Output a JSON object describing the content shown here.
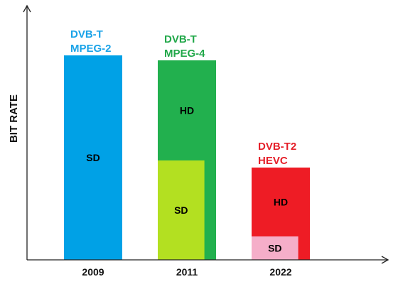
{
  "chart_data": {
    "type": "bar",
    "title": "",
    "xlabel": "",
    "ylabel": "BIT RATE",
    "grid": false,
    "legend": "none",
    "categories": [
      "2009",
      "2011",
      "2022"
    ],
    "group_labels": [
      [
        "DVB-T",
        "MPEG-2"
      ],
      [
        "DVB-T",
        "MPEG-4"
      ],
      [
        "DVB-T2",
        "HEVC"
      ]
    ],
    "group_label_colors": [
      "#1aa3e8",
      "#22a84a",
      "#e5202a"
    ],
    "bars": [
      {
        "category": "2009",
        "segments": [
          {
            "label": "SD",
            "value": 288,
            "color": "#00a1e6",
            "width_fraction": 1.0
          }
        ]
      },
      {
        "category": "2011",
        "segments": [
          {
            "label": "SD",
            "value": 140,
            "color": "#b3e021",
            "width_fraction": 0.8
          },
          {
            "label": "HD",
            "value": 281,
            "color": "#22b04e",
            "width_fraction": 1.0
          }
        ]
      },
      {
        "category": "2022",
        "segments": [
          {
            "label": "SD",
            "value": 33,
            "color": "#f5aec9",
            "width_fraction": 0.8
          },
          {
            "label": "HD",
            "value": 130,
            "color": "#ee1c25",
            "width_fraction": 1.0
          }
        ]
      }
    ],
    "ylim": [
      0,
      356
    ]
  }
}
